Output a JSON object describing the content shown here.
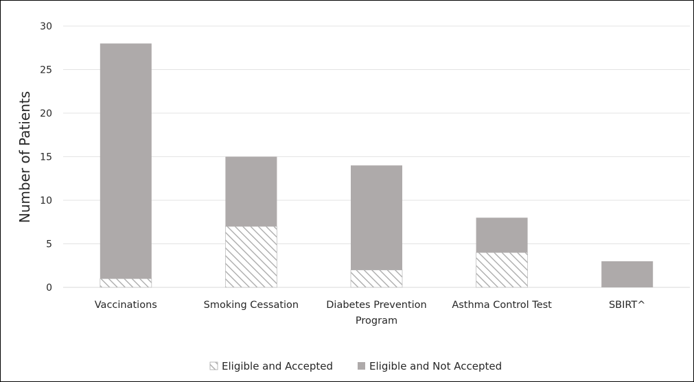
{
  "chart_data": {
    "type": "bar",
    "stacked": true,
    "title": "",
    "xlabel": "",
    "ylabel": "Number of Patients",
    "ylim": [
      0,
      30
    ],
    "yticks": [
      0,
      5,
      10,
      15,
      20,
      25,
      30
    ],
    "grid": true,
    "legend_position": "bottom",
    "categories": [
      [
        "Vaccinations"
      ],
      [
        "Smoking Cessation"
      ],
      [
        "Diabetes Prevention",
        "Program"
      ],
      [
        "Asthma Control Test"
      ],
      [
        "SBIRT^"
      ]
    ],
    "series": [
      {
        "name": "Eligible and Accepted",
        "pattern": "hatched",
        "color": "#a6a6a6",
        "values": [
          1,
          7,
          2,
          4,
          0
        ]
      },
      {
        "name": "Eligible and Not Accepted",
        "pattern": "solid",
        "color": "#aeaaaa",
        "values": [
          27,
          8,
          12,
          4,
          3
        ]
      }
    ]
  }
}
